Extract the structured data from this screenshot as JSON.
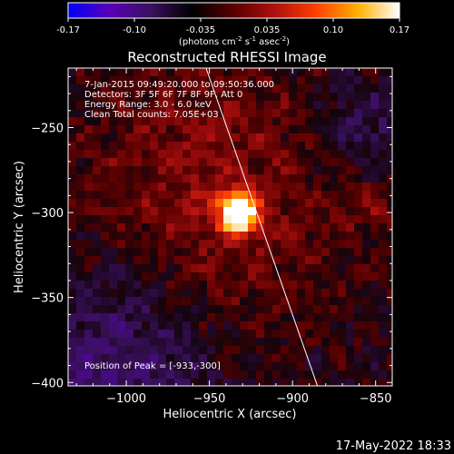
{
  "colorbar": {
    "tick_labels": [
      "-0.17",
      "-0.10",
      "-0.035",
      "0.035",
      "0.10",
      "0.17"
    ],
    "units_main": "(photons cm",
    "units_exp1": "-2",
    "units_mid1": " s",
    "units_exp2": "-1",
    "units_mid2": " asec",
    "units_exp3": "-2",
    "units_close": ")",
    "colormap": [
      "#0000ff",
      "#5a00b5",
      "#3a1060",
      "#000000",
      "#5a0000",
      "#b01010",
      "#ff4000",
      "#ffb000",
      "#ffffff"
    ]
  },
  "chart_data": {
    "type": "heatmap",
    "title": "Reconstructed RHESSI Image",
    "xlabel": "Heliocentric X (arcsec)",
    "ylabel": "Heliocentric Y (arcsec)",
    "xlim": [
      -1035,
      -840
    ],
    "ylim": [
      -402,
      -215
    ],
    "xticks": [
      -1000,
      -950,
      -900,
      -850
    ],
    "yticks": [
      -250,
      -300,
      -350,
      -400
    ],
    "xtick_labels": [
      "−1000",
      "−950",
      "−900",
      "−850"
    ],
    "ytick_labels": [
      "−250",
      "−300",
      "−350",
      "−400"
    ],
    "value_range": [
      -0.17,
      0.17
    ],
    "peak": {
      "x": -933,
      "y": -300,
      "value": 0.17
    },
    "limb_line": [
      [
        -952,
        -215
      ],
      [
        -885,
        -402
      ]
    ],
    "info": [
      " 7-Jan-2015 09:49:20.000 to 09:50:36.000",
      "Detectors: 3F 5F 6F 7F 8F 9F, Att 0",
      "Energy Range: 3.0 - 6.0 keV",
      "Clean     Total counts: 7.05E+03"
    ],
    "peak_label": "Position of Peak = [-933,-300]"
  },
  "footer": {
    "timestamp": "17-May-2022 18:33"
  }
}
